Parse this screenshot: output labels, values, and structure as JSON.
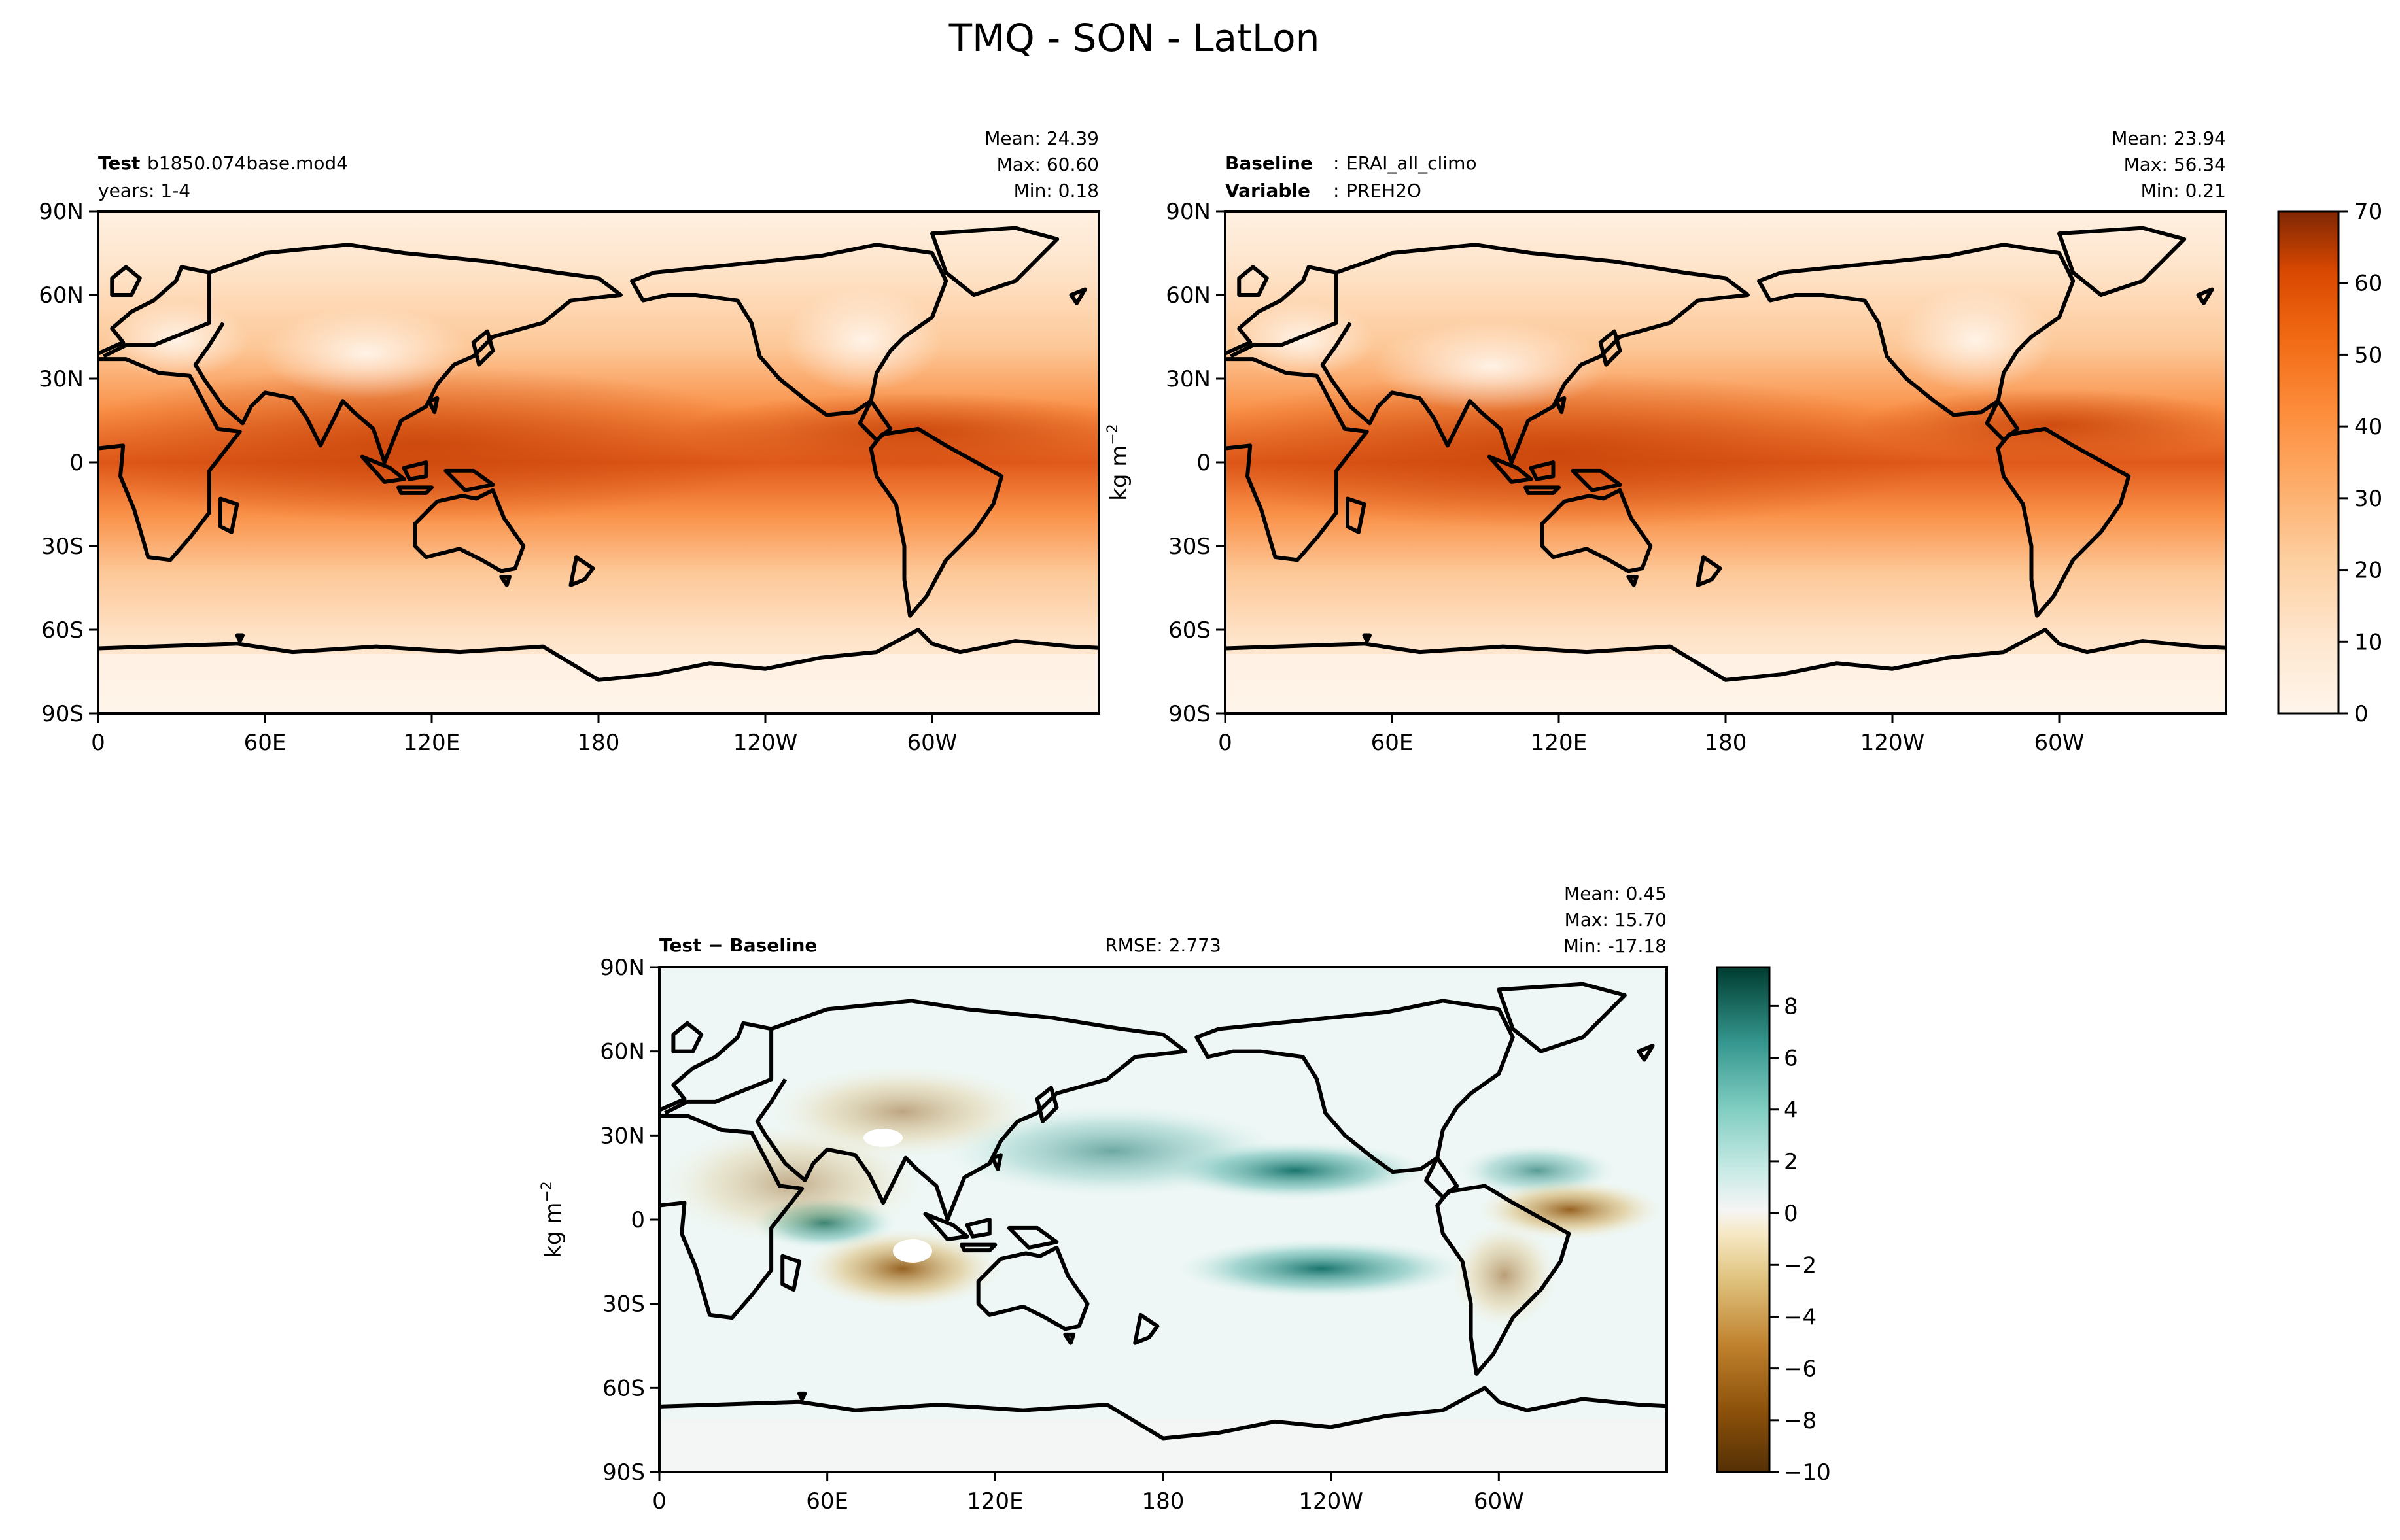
{
  "figure": {
    "title": "TMQ - SON - LatLon"
  },
  "chart_data": [
    {
      "type": "heatmap",
      "panel": "test",
      "label_bold": "Test",
      "label_text": "b1850.074base.mod4",
      "label_line2": "years: 1-4",
      "stats": {
        "mean": "Mean: 24.39",
        "max": "Max: 60.60",
        "min": "Min:  0.18"
      },
      "xticks": [
        "0",
        "60E",
        "120E",
        "180",
        "120W",
        "60W"
      ],
      "yticks": [
        "90N",
        "60N",
        "30N",
        "0",
        "30S",
        "60S",
        "90S"
      ],
      "xlim": [
        0,
        360
      ],
      "ylim": [
        -90,
        90
      ],
      "ylabel": ""
    },
    {
      "type": "heatmap",
      "panel": "reference",
      "label_bold": "Baseline",
      "label_text": "ERAI_all_climo",
      "label_bold2": "Variable",
      "label_text2": "PREH2O",
      "stats": {
        "mean": "Mean: 23.94",
        "max": "Max: 56.34",
        "min": "Min:  0.21"
      },
      "xticks": [
        "0",
        "60E",
        "120E",
        "180",
        "120W",
        "60W"
      ],
      "yticks": [
        "90N",
        "60N",
        "30N",
        "0",
        "30S",
        "60S",
        "90S"
      ],
      "xlim": [
        0,
        360
      ],
      "ylim": [
        -90,
        90
      ],
      "ylabel": "kg m",
      "ylabel_sup": "−2",
      "colorbar": {
        "ticks": [
          0,
          10,
          20,
          30,
          40,
          50,
          60,
          70
        ],
        "range": [
          0,
          70
        ]
      }
    },
    {
      "type": "heatmap",
      "panel": "diff",
      "label_bold": "Test − Baseline",
      "rmse": "RMSE: 2.773",
      "stats": {
        "mean": "Mean:  0.45",
        "max": "Max: 15.70",
        "min": "Min: -17.18"
      },
      "xticks": [
        "0",
        "60E",
        "120E",
        "180",
        "120W",
        "60W"
      ],
      "yticks": [
        "90N",
        "60N",
        "30N",
        "0",
        "30S",
        "60S",
        "90S"
      ],
      "xlim": [
        0,
        360
      ],
      "ylim": [
        -90,
        90
      ],
      "ylabel": "kg m",
      "ylabel_sup": "−2",
      "colorbar": {
        "ticks": [
          "8",
          "6",
          "4",
          "2",
          "0",
          "−2",
          "−4",
          "−6",
          "−8",
          "−10"
        ],
        "range": [
          -10,
          9.5
        ]
      }
    }
  ]
}
